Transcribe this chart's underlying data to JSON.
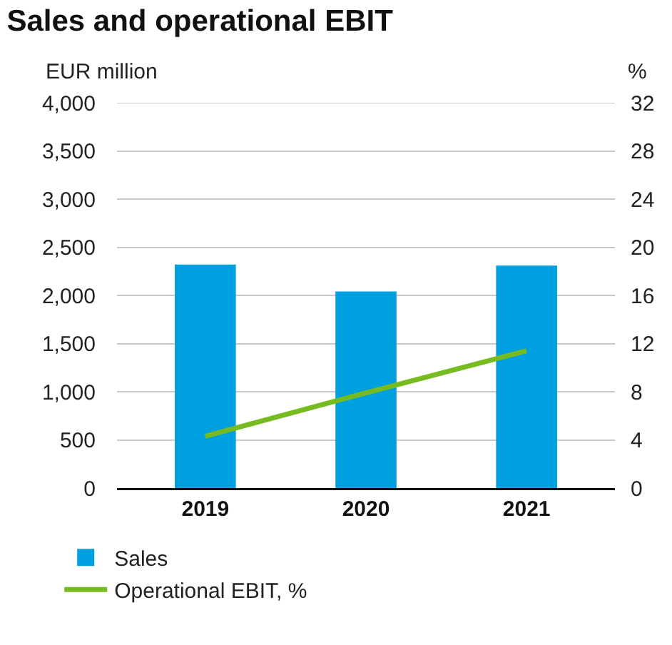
{
  "chart_data": {
    "type": "bar",
    "title": "Sales and operational EBIT",
    "ylabel": "EUR million",
    "y2label": "%",
    "categories": [
      "2019",
      "2020",
      "2021"
    ],
    "series": [
      {
        "name": "Sales",
        "color": "#009fdf",
        "values": [
          2320,
          2040,
          2310
        ]
      },
      {
        "name": "Operational EBIT, %",
        "type": "line",
        "axis": "y2",
        "color": "#76bc21",
        "values": [
          4.3,
          7.9,
          11.4
        ]
      }
    ],
    "ylim": [
      0,
      4000
    ],
    "yticks": [
      {
        "value": 0,
        "label": "0"
      },
      {
        "value": 500,
        "label": "500"
      },
      {
        "value": 1000,
        "label": "1,000"
      },
      {
        "value": 1500,
        "label": "1,500"
      },
      {
        "value": 2000,
        "label": "2,000"
      },
      {
        "value": 2500,
        "label": "2,500"
      },
      {
        "value": 3000,
        "label": "3,000"
      },
      {
        "value": 3500,
        "label": "3,500"
      },
      {
        "value": 4000,
        "label": "4,000"
      }
    ],
    "y2lim": [
      0,
      32
    ],
    "y2ticks": [
      0,
      4,
      8,
      12,
      16,
      20,
      24,
      28,
      32
    ],
    "grid": "y",
    "legend": "bottom left",
    "marker": "none",
    "line_style": "solid"
  }
}
